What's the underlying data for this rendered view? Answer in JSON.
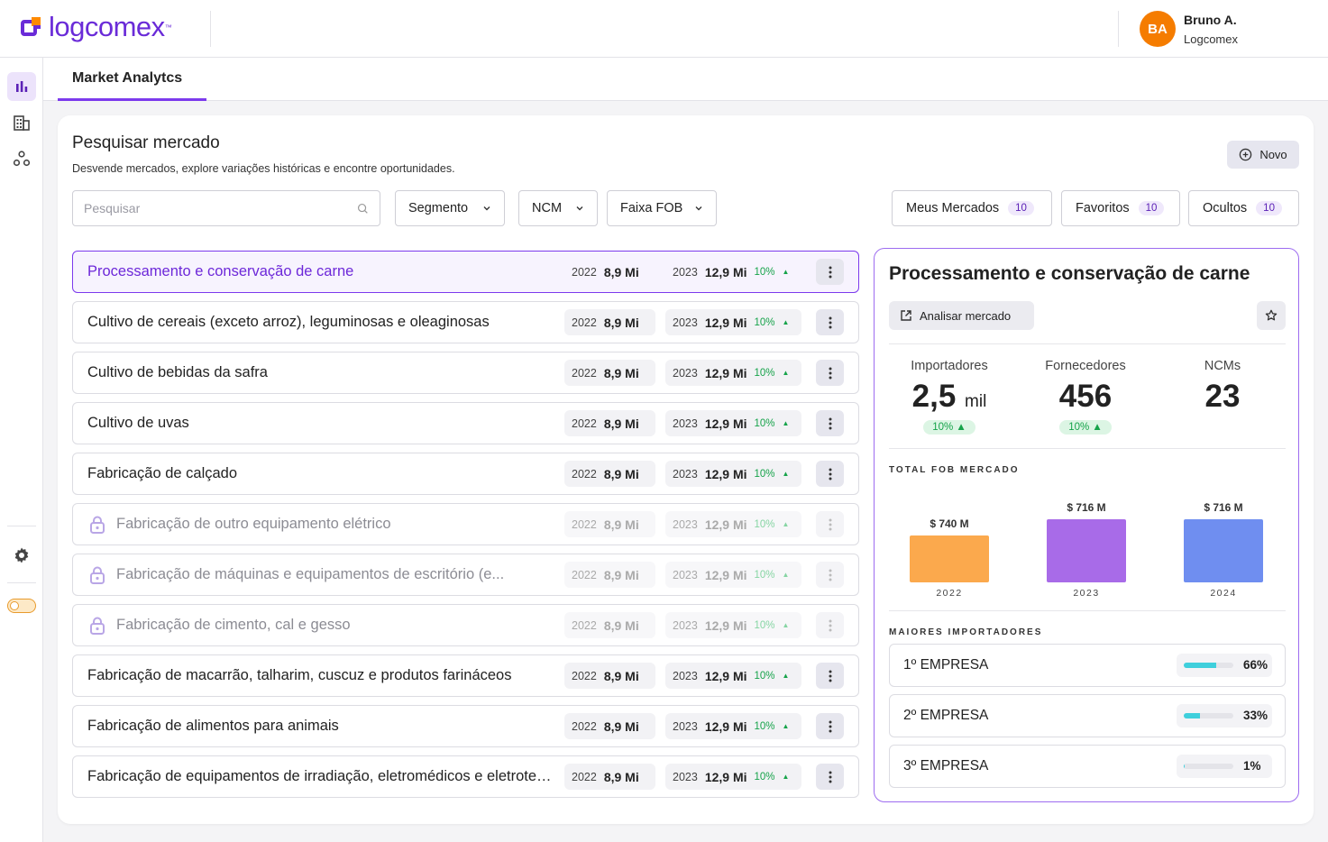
{
  "header": {
    "logo_text": "logcomex",
    "user_initials": "BA",
    "user_name": "Bruno A.",
    "user_org": "Logcomex"
  },
  "tabs": [
    {
      "label": "Market Analytcs"
    }
  ],
  "page": {
    "title": "Pesquisar mercado",
    "subtitle": "Desvende mercados, explore variações históricas e encontre oportunidades.",
    "new_button": "Novo",
    "search_placeholder": "Pesquisar"
  },
  "filters": {
    "segmento": "Segmento",
    "ncm": "NCM",
    "faixa_fob": "Faixa FOB"
  },
  "quick_filters": [
    {
      "label": "Meus Mercados",
      "count": "10"
    },
    {
      "label": "Favoritos",
      "count": "10"
    },
    {
      "label": "Ocultos",
      "count": "10"
    }
  ],
  "markets": [
    {
      "name": "Processamento e conservação de carne",
      "y1": "2022",
      "v1": "8,9 Mi",
      "y2": "2023",
      "v2": "12,9 Mi",
      "pct": "10%"
    },
    {
      "name": "Cultivo de cereais (exceto arroz), leguminosas e oleaginosas",
      "y1": "2022",
      "v1": "8,9 Mi",
      "y2": "2023",
      "v2": "12,9 Mi",
      "pct": "10%"
    },
    {
      "name": "Cultivo de bebidas da safra",
      "y1": "2022",
      "v1": "8,9 Mi",
      "y2": "2023",
      "v2": "12,9 Mi",
      "pct": "10%"
    },
    {
      "name": "Cultivo de uvas",
      "y1": "2022",
      "v1": "8,9 Mi",
      "y2": "2023",
      "v2": "12,9 Mi",
      "pct": "10%"
    },
    {
      "name": "Fabricação de calçado",
      "y1": "2022",
      "v1": "8,9 Mi",
      "y2": "2023",
      "v2": "12,9 Mi",
      "pct": "10%"
    },
    {
      "name": "Fabricação de outro equipamento elétrico",
      "y1": "2022",
      "v1": "8,9 Mi",
      "y2": "2023",
      "v2": "12,9 Mi",
      "pct": "10%"
    },
    {
      "name": "Fabricação de máquinas e equipamentos de escritório (e...",
      "y1": "2022",
      "v1": "8,9 Mi",
      "y2": "2023",
      "v2": "12,9 Mi",
      "pct": "10%"
    },
    {
      "name": "Fabricação de cimento, cal e gesso",
      "y1": "2022",
      "v1": "8,9 Mi",
      "y2": "2023",
      "v2": "12,9 Mi",
      "pct": "10%"
    },
    {
      "name": "Fabricação de macarrão, talharim, cuscuz e produtos farináceos",
      "y1": "2022",
      "v1": "8,9 Mi",
      "y2": "2023",
      "v2": "12,9 Mi",
      "pct": "10%"
    },
    {
      "name": "Fabricação de alimentos para animais",
      "y1": "2022",
      "v1": "8,9 Mi",
      "y2": "2023",
      "v2": "12,9 Mi",
      "pct": "10%"
    },
    {
      "name": "Fabricação de equipamentos de irradiação, eletromédicos e eletroterapêuticos",
      "y1": "2022",
      "v1": "8,9 Mi",
      "y2": "2023",
      "v2": "12,9 Mi",
      "pct": "10%"
    }
  ],
  "detail": {
    "title": "Processamento e conservação de carne",
    "analyze_button": "Analisar mercado",
    "kpis": {
      "importadores_label": "Importadores",
      "importadores_value": "2,5",
      "importadores_unit": "mil",
      "importadores_trend": "10%",
      "fornecedores_label": "Fornecedores",
      "fornecedores_value": "456",
      "fornecedores_trend": "10%",
      "ncms_label": "NCMs",
      "ncms_value": "23"
    },
    "fob_section": "TOTAL FOB MERCADO",
    "importers_section": "MAIORES IMPORTADORES",
    "importers": [
      {
        "name": "1º EMPRESA",
        "pct": "66%",
        "value": 66
      },
      {
        "name": "2º EMPRESA",
        "pct": "33%",
        "value": 33
      },
      {
        "name": "3º EMPRESA",
        "pct": "1%",
        "value": 1
      }
    ]
  },
  "chart_data": {
    "type": "bar",
    "title": "TOTAL FOB MERCADO",
    "categories": [
      "2022",
      "2023",
      "2024"
    ],
    "values": [
      740,
      716,
      716
    ],
    "value_labels": [
      "$ 740 M",
      "$ 716 M",
      "$ 716 M"
    ],
    "unit": "M USD",
    "colors": [
      "#fba94d",
      "#a86be8",
      "#6f8ef0"
    ]
  }
}
